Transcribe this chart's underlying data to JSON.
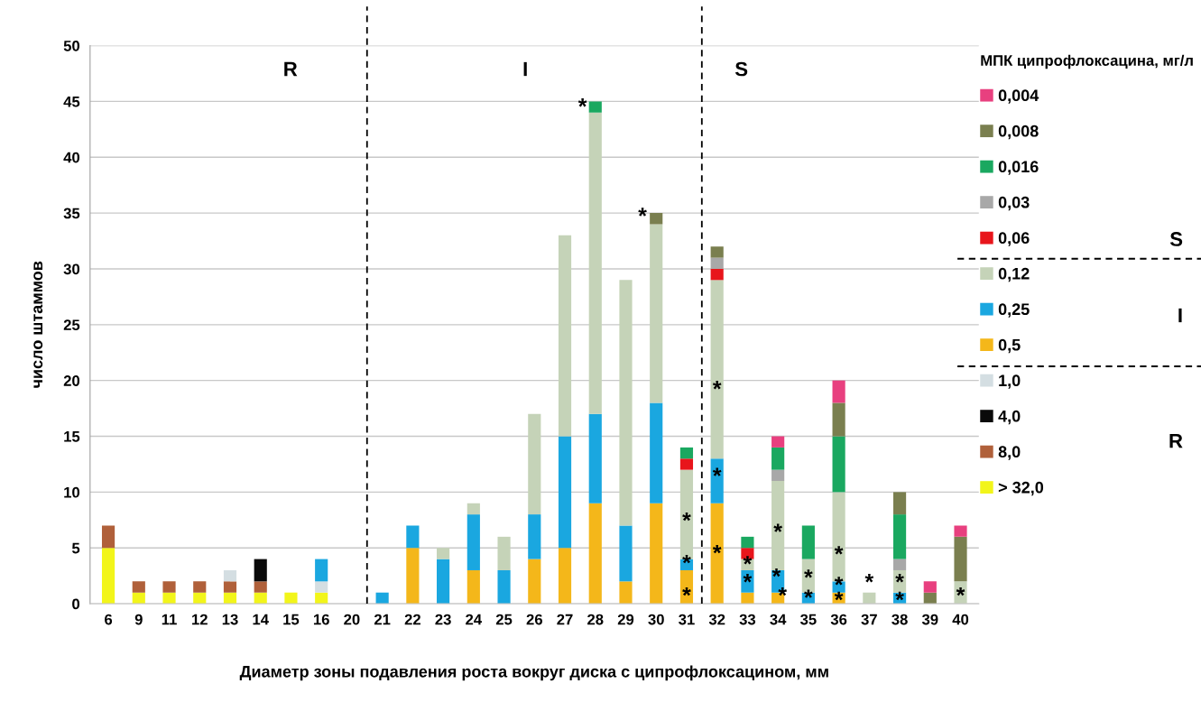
{
  "chart_data": {
    "type": "bar",
    "stacked": true,
    "xlabel": "Диаметр зоны подавления роста вокруг диска с ципрофлоксацином, мм",
    "ylabel": "число штаммов",
    "legend_title": "МПК ципрофлоксацина, мг/л",
    "categories": [
      "6",
      "9",
      "11",
      "12",
      "13",
      "14",
      "15",
      "16",
      "20",
      "21",
      "22",
      "23",
      "24",
      "25",
      "26",
      "27",
      "28",
      "29",
      "30",
      "31",
      "32",
      "33",
      "34",
      "35",
      "36",
      "37",
      "38",
      "39",
      "40"
    ],
    "series": [
      {
        "name": "> 32,0",
        "color": "#f2f51a",
        "values": [
          5,
          1,
          1,
          1,
          1,
          1,
          1,
          1,
          0,
          0,
          0,
          0,
          0,
          0,
          0,
          0,
          0,
          0,
          0,
          0,
          0,
          0,
          0,
          0,
          0,
          0,
          0,
          0,
          0
        ]
      },
      {
        "name": "8,0",
        "color": "#b0603a",
        "values": [
          2,
          1,
          1,
          1,
          1,
          1,
          0,
          0,
          0,
          0,
          0,
          0,
          0,
          0,
          0,
          0,
          0,
          0,
          0,
          0,
          0,
          0,
          0,
          0,
          0,
          0,
          0,
          0,
          0
        ]
      },
      {
        "name": "4,0",
        "color": "#0a0a0a",
        "values": [
          0,
          0,
          0,
          0,
          0,
          2,
          0,
          0,
          0,
          0,
          0,
          0,
          0,
          0,
          0,
          0,
          0,
          0,
          0,
          0,
          0,
          0,
          0,
          0,
          0,
          0,
          0,
          0,
          0
        ]
      },
      {
        "name": "1,0",
        "color": "#d4dee2",
        "values": [
          0,
          0,
          0,
          0,
          1,
          0,
          0,
          1,
          0,
          0,
          0,
          0,
          0,
          0,
          0,
          0,
          0,
          0,
          0,
          0,
          0,
          0,
          0,
          0,
          0,
          0,
          0,
          0,
          0
        ]
      },
      {
        "name": "0,5",
        "color": "#f4b71a",
        "values": [
          0,
          0,
          0,
          0,
          0,
          0,
          0,
          0,
          0,
          0,
          5,
          0,
          3,
          0,
          4,
          5,
          9,
          2,
          9,
          3,
          9,
          1,
          1,
          0,
          1,
          0,
          0,
          0,
          0
        ]
      },
      {
        "name": "0,25",
        "color": "#1aa7e0",
        "values": [
          0,
          0,
          0,
          0,
          0,
          0,
          0,
          2,
          0,
          1,
          2,
          4,
          5,
          3,
          4,
          10,
          8,
          5,
          9,
          1,
          4,
          2,
          2,
          1,
          1,
          0,
          1,
          0,
          0
        ]
      },
      {
        "name": "0,12",
        "color": "#c5d3b8",
        "values": [
          0,
          0,
          0,
          0,
          0,
          0,
          0,
          0,
          0,
          0,
          0,
          1,
          1,
          3,
          9,
          18,
          27,
          22,
          16,
          8,
          16,
          1,
          8,
          3,
          8,
          1,
          2,
          0,
          2
        ]
      },
      {
        "name": "0,06",
        "color": "#e8151b",
        "values": [
          0,
          0,
          0,
          0,
          0,
          0,
          0,
          0,
          0,
          0,
          0,
          0,
          0,
          0,
          0,
          0,
          0,
          0,
          0,
          1,
          1,
          1,
          0,
          0,
          0,
          0,
          0,
          0,
          0
        ]
      },
      {
        "name": "0,03",
        "color": "#a8a8a8",
        "values": [
          0,
          0,
          0,
          0,
          0,
          0,
          0,
          0,
          0,
          0,
          0,
          0,
          0,
          0,
          0,
          0,
          0,
          0,
          0,
          0,
          1,
          0,
          1,
          0,
          0,
          0,
          1,
          0,
          0
        ]
      },
      {
        "name": "0,016",
        "color": "#1aa860",
        "values": [
          0,
          0,
          0,
          0,
          0,
          0,
          0,
          0,
          0,
          0,
          0,
          0,
          0,
          0,
          0,
          0,
          1,
          0,
          0,
          1,
          0,
          1,
          2,
          3,
          5,
          0,
          4,
          0,
          0
        ]
      },
      {
        "name": "0,008",
        "color": "#7a7f4f",
        "values": [
          0,
          0,
          0,
          0,
          0,
          0,
          0,
          0,
          0,
          0,
          0,
          0,
          0,
          0,
          0,
          0,
          0,
          0,
          1,
          0,
          1,
          0,
          0,
          0,
          3,
          0,
          2,
          1,
          4
        ]
      },
      {
        "name": "0,004",
        "color": "#e8407f",
        "values": [
          0,
          0,
          0,
          0,
          0,
          0,
          0,
          0,
          0,
          0,
          0,
          0,
          0,
          0,
          0,
          0,
          0,
          0,
          0,
          0,
          0,
          0,
          1,
          0,
          2,
          0,
          0,
          1,
          1
        ]
      }
    ],
    "ylim": [
      0,
      50
    ],
    "yticks": [
      0,
      5,
      10,
      15,
      20,
      25,
      30,
      35,
      40,
      45,
      50
    ],
    "grid": "y",
    "legend": "right",
    "annotations": [
      "R",
      "I",
      "S",
      "S",
      "I",
      "R",
      "*",
      "*",
      "*",
      "*",
      "*",
      "*",
      "*",
      "*",
      "*",
      "*",
      "*",
      "*",
      "*",
      "*",
      "*",
      "*",
      "*",
      "*",
      "*",
      "*",
      "*",
      "*"
    ]
  }
}
